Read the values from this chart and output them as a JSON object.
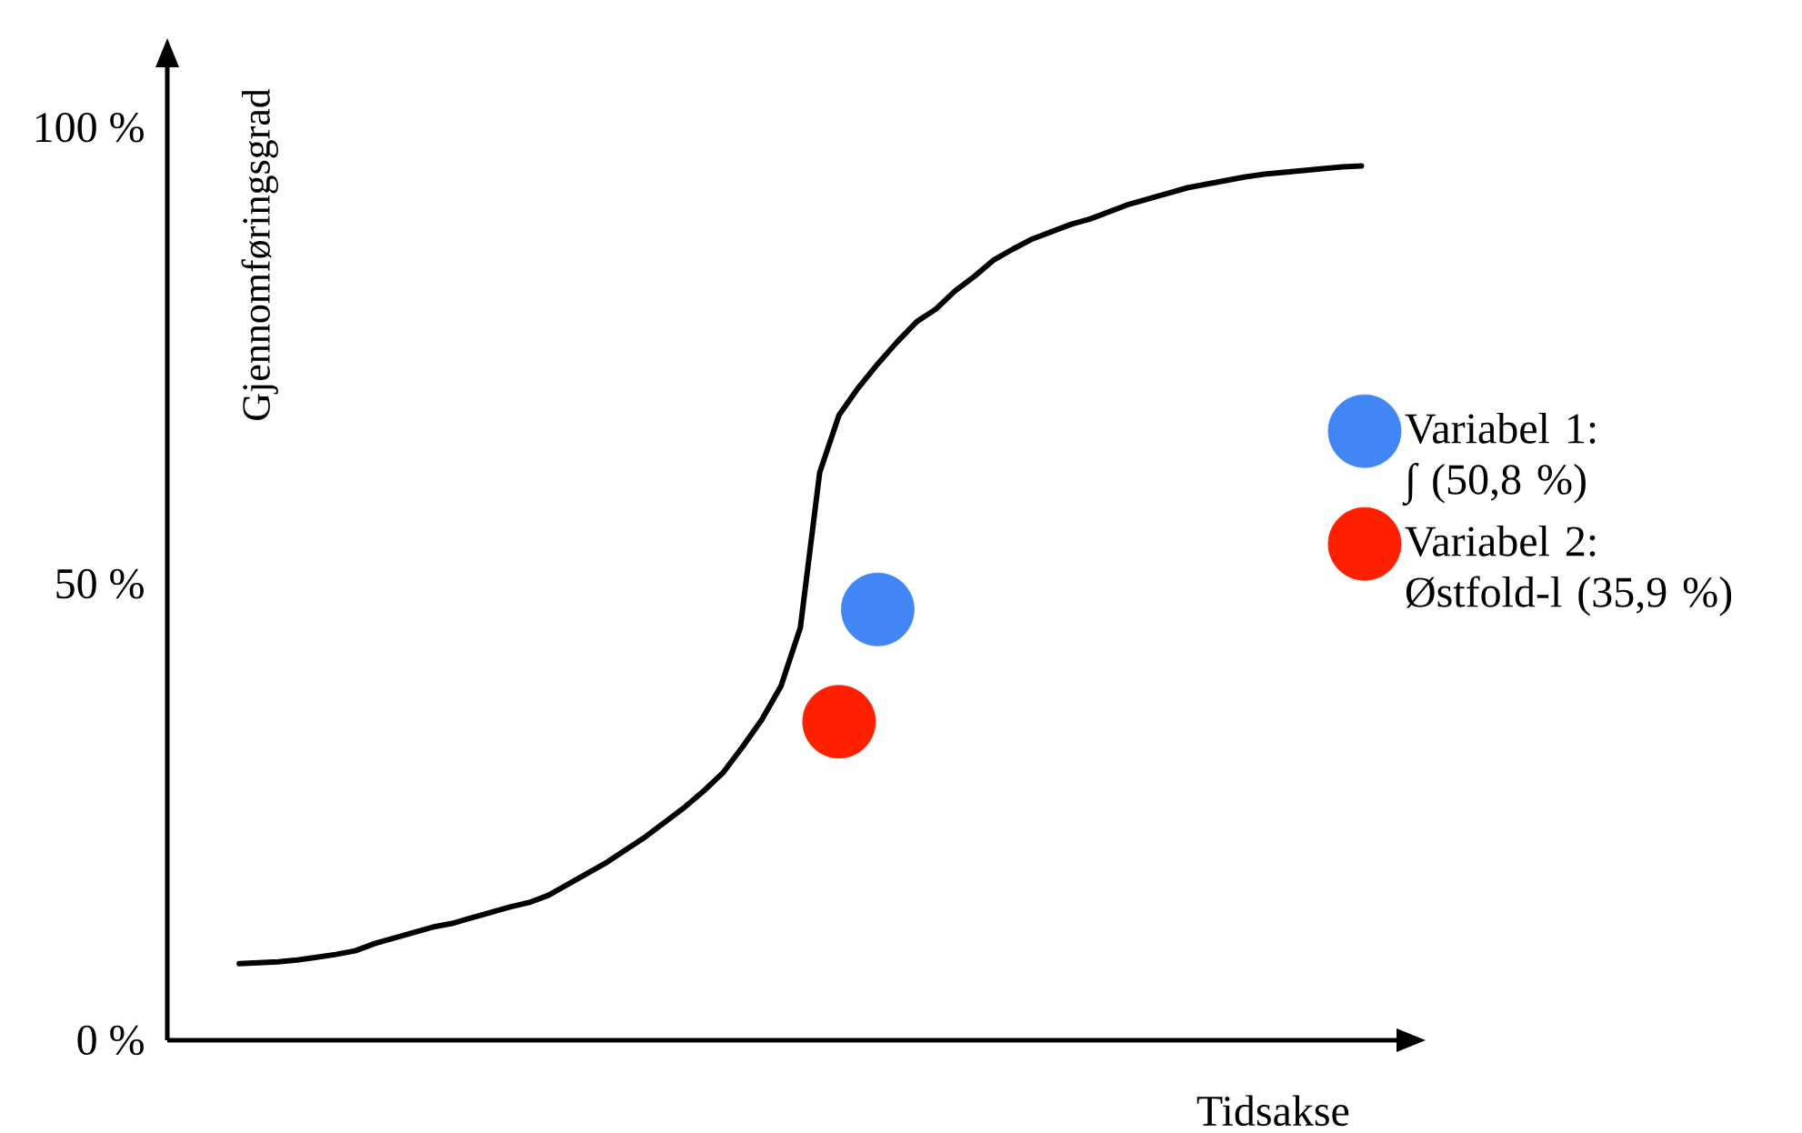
{
  "chart_data": {
    "type": "line",
    "xlabel": "Tidsakse",
    "ylabel": "Gjennomføringsgrad",
    "categories": [
      null,
      null,
      null,
      null,
      null,
      null,
      null,
      null,
      null,
      null,
      null,
      null,
      null,
      null,
      null,
      null,
      null,
      null,
      null,
      null,
      null,
      null,
      null,
      null,
      null,
      null,
      null,
      null,
      null,
      null,
      null,
      null,
      null,
      null,
      null,
      null,
      null,
      null,
      null,
      null,
      null,
      null,
      null,
      null,
      null,
      null,
      null,
      null,
      null,
      null,
      null,
      null,
      null,
      null,
      null,
      null,
      null,
      null,
      null
    ],
    "ylim": [
      0,
      107
    ],
    "yticks": [
      {
        "value": 0,
        "label": "0 %"
      },
      {
        "value": 50,
        "label": "50 %"
      },
      {
        "value": 100,
        "label": "100 %"
      }
    ],
    "legend": "right",
    "series": [
      {
        "color": "#000000",
        "values": [
          8.4,
          8.5,
          8.6,
          8.8,
          9.1,
          9.4,
          9.8,
          10.6,
          11.2,
          11.8,
          12.4,
          12.8,
          13.4,
          14.0,
          14.6,
          15.1,
          15.9,
          17.1,
          18.3,
          19.5,
          20.9,
          22.3,
          23.9,
          25.5,
          27.3,
          29.3,
          32.1,
          35.1,
          38.8,
          45.2,
          62.2,
          68.5,
          71.5,
          74.1,
          76.5,
          78.7,
          80.1,
          82.1,
          83.7,
          85.5,
          86.7,
          87.8,
          88.6,
          89.4,
          90.0,
          90.8,
          91.6,
          92.2,
          92.8,
          93.4,
          93.8,
          94.2,
          94.6,
          94.9,
          95.1,
          95.3,
          95.5,
          95.7,
          95.8
        ]
      },
      {
        "type": "scatter",
        "name": "Variabel  1: ∫ (50,8 %)",
        "color": "#4285f4",
        "marker": "circle",
        "values": [
          null,
          null,
          null,
          null,
          null,
          null,
          null,
          null,
          null,
          null,
          null,
          null,
          null,
          null,
          null,
          null,
          null,
          null,
          null,
          null,
          null,
          null,
          null,
          null,
          null,
          null,
          null,
          null,
          null,
          null,
          null,
          null,
          null,
          47.2,
          null,
          null,
          null,
          null,
          null,
          null,
          null,
          null,
          null,
          null,
          null,
          null,
          null,
          null,
          null,
          null,
          null,
          null,
          null,
          null,
          null,
          null,
          null,
          null,
          null
        ]
      },
      {
        "type": "scatter",
        "name": "Variabel 2: Østfold-l (35,9 %)",
        "color": "#ff2000",
        "marker": "circle",
        "values": [
          null,
          null,
          null,
          null,
          null,
          null,
          null,
          null,
          null,
          null,
          null,
          null,
          null,
          null,
          null,
          null,
          null,
          null,
          null,
          null,
          null,
          null,
          null,
          null,
          null,
          null,
          null,
          null,
          null,
          null,
          null,
          34.9,
          null,
          null,
          null,
          null,
          null,
          null,
          null,
          null,
          null,
          null,
          null,
          null,
          null,
          null,
          null,
          null,
          null,
          null,
          null,
          null,
          null,
          null,
          null,
          null,
          null,
          null,
          null
        ]
      }
    ]
  }
}
